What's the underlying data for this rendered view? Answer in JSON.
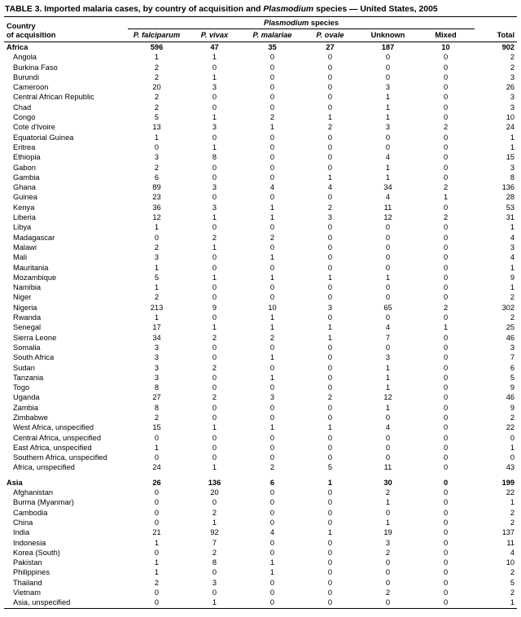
{
  "title": {
    "prefix": "TABLE 3. Imported malaria cases, by country of acquisition and ",
    "species": "Plasmodium",
    "suffix": " species — United States, 2005"
  },
  "table": {
    "country_header_line1": "Country",
    "country_header_line2": "of acquisition",
    "group_header_italic": "Plasmodium",
    "group_header_rest": " species",
    "total_header": "Total",
    "columns": [
      {
        "label": "P. falciparum",
        "italic": true
      },
      {
        "label": "P. vivax",
        "italic": true
      },
      {
        "label": "P. malariae",
        "italic": true
      },
      {
        "label": "P. ovale",
        "italic": true
      },
      {
        "label": "Unknown",
        "italic": false
      },
      {
        "label": "Mixed",
        "italic": false
      }
    ],
    "rows": [
      {
        "name": "Africa",
        "bold": true,
        "values": [
          596,
          47,
          35,
          27,
          187,
          10,
          902
        ]
      },
      {
        "name": "Angola",
        "indent": true,
        "values": [
          1,
          1,
          0,
          0,
          0,
          0,
          2
        ]
      },
      {
        "name": "Burkina Faso",
        "indent": true,
        "values": [
          2,
          0,
          0,
          0,
          0,
          0,
          2
        ]
      },
      {
        "name": "Burundi",
        "indent": true,
        "values": [
          2,
          1,
          0,
          0,
          0,
          0,
          3
        ]
      },
      {
        "name": "Cameroon",
        "indent": true,
        "values": [
          20,
          3,
          0,
          0,
          3,
          0,
          26
        ]
      },
      {
        "name": "Central African Republic",
        "indent": true,
        "values": [
          2,
          0,
          0,
          0,
          1,
          0,
          3
        ]
      },
      {
        "name": "Chad",
        "indent": true,
        "values": [
          2,
          0,
          0,
          0,
          1,
          0,
          3
        ]
      },
      {
        "name": "Congo",
        "indent": true,
        "values": [
          5,
          1,
          2,
          1,
          1,
          0,
          10
        ]
      },
      {
        "name": "Cote d'Ivoire",
        "indent": true,
        "values": [
          13,
          3,
          1,
          2,
          3,
          2,
          24
        ]
      },
      {
        "name": "Equatorial Guinea",
        "indent": true,
        "values": [
          1,
          0,
          0,
          0,
          0,
          0,
          1
        ]
      },
      {
        "name": "Eritrea",
        "indent": true,
        "values": [
          0,
          1,
          0,
          0,
          0,
          0,
          1
        ]
      },
      {
        "name": "Ethiopia",
        "indent": true,
        "values": [
          3,
          8,
          0,
          0,
          4,
          0,
          15
        ]
      },
      {
        "name": "Gabon",
        "indent": true,
        "values": [
          2,
          0,
          0,
          0,
          1,
          0,
          3
        ]
      },
      {
        "name": "Gambia",
        "indent": true,
        "values": [
          6,
          0,
          0,
          1,
          1,
          0,
          8
        ]
      },
      {
        "name": "Ghana",
        "indent": true,
        "values": [
          89,
          3,
          4,
          4,
          34,
          2,
          136
        ]
      },
      {
        "name": "Guinea",
        "indent": true,
        "values": [
          23,
          0,
          0,
          0,
          4,
          1,
          28
        ]
      },
      {
        "name": "Kenya",
        "indent": true,
        "values": [
          36,
          3,
          1,
          2,
          11,
          0,
          53
        ]
      },
      {
        "name": "Liberia",
        "indent": true,
        "values": [
          12,
          1,
          1,
          3,
          12,
          2,
          31
        ]
      },
      {
        "name": "Libya",
        "indent": true,
        "values": [
          1,
          0,
          0,
          0,
          0,
          0,
          1
        ]
      },
      {
        "name": "Madagascar",
        "indent": true,
        "values": [
          0,
          2,
          2,
          0,
          0,
          0,
          4
        ]
      },
      {
        "name": "Malawi",
        "indent": true,
        "values": [
          2,
          1,
          0,
          0,
          0,
          0,
          3
        ]
      },
      {
        "name": "Mali",
        "indent": true,
        "values": [
          3,
          0,
          1,
          0,
          0,
          0,
          4
        ]
      },
      {
        "name": "Mauritania",
        "indent": true,
        "values": [
          1,
          0,
          0,
          0,
          0,
          0,
          1
        ]
      },
      {
        "name": "Mozambique",
        "indent": true,
        "values": [
          5,
          1,
          1,
          1,
          1,
          0,
          9
        ]
      },
      {
        "name": "Namibia",
        "indent": true,
        "values": [
          1,
          0,
          0,
          0,
          0,
          0,
          1
        ]
      },
      {
        "name": "Niger",
        "indent": true,
        "values": [
          2,
          0,
          0,
          0,
          0,
          0,
          2
        ]
      },
      {
        "name": "Nigeria",
        "indent": true,
        "values": [
          213,
          9,
          10,
          3,
          65,
          2,
          302
        ]
      },
      {
        "name": "Rwanda",
        "indent": true,
        "values": [
          1,
          0,
          1,
          0,
          0,
          0,
          2
        ]
      },
      {
        "name": "Senegal",
        "indent": true,
        "values": [
          17,
          1,
          1,
          1,
          4,
          1,
          25
        ]
      },
      {
        "name": "Sierra Leone",
        "indent": true,
        "values": [
          34,
          2,
          2,
          1,
          7,
          0,
          46
        ]
      },
      {
        "name": "Somalia",
        "indent": true,
        "values": [
          3,
          0,
          0,
          0,
          0,
          0,
          3
        ]
      },
      {
        "name": "South Africa",
        "indent": true,
        "values": [
          3,
          0,
          1,
          0,
          3,
          0,
          7
        ]
      },
      {
        "name": "Sudan",
        "indent": true,
        "values": [
          3,
          2,
          0,
          0,
          1,
          0,
          6
        ]
      },
      {
        "name": "Tanzania",
        "indent": true,
        "values": [
          3,
          0,
          1,
          0,
          1,
          0,
          5
        ]
      },
      {
        "name": "Togo",
        "indent": true,
        "values": [
          8,
          0,
          0,
          0,
          1,
          0,
          9
        ]
      },
      {
        "name": "Uganda",
        "indent": true,
        "values": [
          27,
          2,
          3,
          2,
          12,
          0,
          46
        ]
      },
      {
        "name": "Zambia",
        "indent": true,
        "values": [
          8,
          0,
          0,
          0,
          1,
          0,
          9
        ]
      },
      {
        "name": "Zimbabwe",
        "indent": true,
        "values": [
          2,
          0,
          0,
          0,
          0,
          0,
          2
        ]
      },
      {
        "name": "West Africa, unspecified",
        "indent": true,
        "values": [
          15,
          1,
          1,
          1,
          4,
          0,
          22
        ]
      },
      {
        "name": "Central Africa, unspecified",
        "indent": true,
        "values": [
          0,
          0,
          0,
          0,
          0,
          0,
          0
        ]
      },
      {
        "name": "East Africa, unspecified",
        "indent": true,
        "values": [
          1,
          0,
          0,
          0,
          0,
          0,
          1
        ]
      },
      {
        "name": "Southern Africa, unspecified",
        "indent": true,
        "values": [
          0,
          0,
          0,
          0,
          0,
          0,
          0
        ]
      },
      {
        "name": "Africa, unspecified",
        "indent": true,
        "values": [
          24,
          1,
          2,
          5,
          11,
          0,
          43
        ]
      },
      {
        "name": "Asia",
        "bold": true,
        "gap": true,
        "values": [
          26,
          136,
          6,
          1,
          30,
          0,
          199
        ]
      },
      {
        "name": "Afghanistan",
        "indent": true,
        "values": [
          0,
          20,
          0,
          0,
          2,
          0,
          22
        ]
      },
      {
        "name": "Burma (Myanmar)",
        "indent": true,
        "values": [
          0,
          0,
          0,
          0,
          1,
          0,
          1
        ]
      },
      {
        "name": "Cambodia",
        "indent": true,
        "values": [
          0,
          2,
          0,
          0,
          0,
          0,
          2
        ]
      },
      {
        "name": "China",
        "indent": true,
        "values": [
          0,
          1,
          0,
          0,
          1,
          0,
          2
        ]
      },
      {
        "name": "India",
        "indent": true,
        "values": [
          21,
          92,
          4,
          1,
          19,
          0,
          137
        ]
      },
      {
        "name": "Indonesia",
        "indent": true,
        "values": [
          1,
          7,
          0,
          0,
          3,
          0,
          11
        ]
      },
      {
        "name": "Korea (South)",
        "indent": true,
        "values": [
          0,
          2,
          0,
          0,
          2,
          0,
          4
        ]
      },
      {
        "name": "Pakistan",
        "indent": true,
        "values": [
          1,
          8,
          1,
          0,
          0,
          0,
          10
        ]
      },
      {
        "name": "Philippines",
        "indent": true,
        "values": [
          1,
          0,
          1,
          0,
          0,
          0,
          2
        ]
      },
      {
        "name": "Thailand",
        "indent": true,
        "values": [
          2,
          3,
          0,
          0,
          0,
          0,
          5
        ]
      },
      {
        "name": "Vietnam",
        "indent": true,
        "values": [
          0,
          0,
          0,
          0,
          2,
          0,
          2
        ]
      },
      {
        "name": "Asia, unspecified",
        "indent": true,
        "values": [
          0,
          1,
          0,
          0,
          0,
          0,
          1
        ]
      }
    ]
  }
}
